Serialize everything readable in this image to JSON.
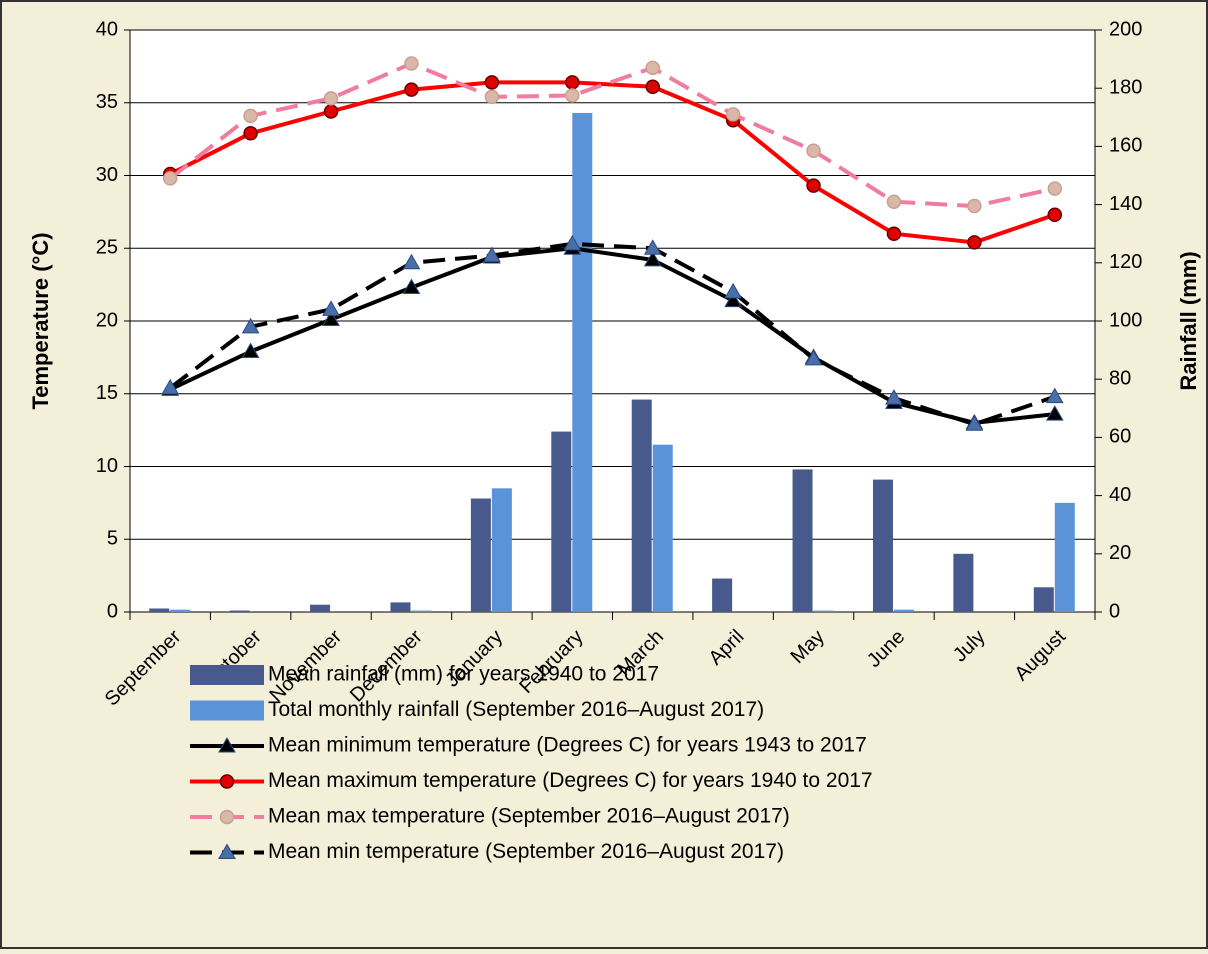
{
  "chart_data": {
    "type": "bar_line",
    "categories": [
      "September",
      "October",
      "November",
      "December",
      "January",
      "February",
      "March",
      "April",
      "May",
      "June",
      "July",
      "August"
    ],
    "ylabel": "Temperature (°C)",
    "y2label": "Rainfall (mm)",
    "ylim": [
      0,
      40
    ],
    "yticks": [
      0,
      5,
      10,
      15,
      20,
      25,
      30,
      35,
      40
    ],
    "y2lim": [
      0,
      200
    ],
    "y2ticks": [
      0,
      20,
      40,
      60,
      80,
      100,
      120,
      140,
      160,
      180,
      200
    ],
    "grid": true,
    "series": [
      {
        "name": "Mean rainfall (mm) for years 1940 to 2017",
        "kind": "bar",
        "axis": "y2",
        "color": "#485a8c",
        "values": [
          1.2,
          0.5,
          2.5,
          3.3,
          39,
          62,
          73,
          11.5,
          49,
          45.5,
          20,
          8.5
        ]
      },
      {
        "name": "Total monthly rainfall (September 2016–August 2017)",
        "kind": "bar",
        "axis": "y2",
        "color": "#5b93d9",
        "values": [
          0.8,
          0,
          0,
          0.5,
          42.5,
          171.5,
          57.5,
          0,
          0.5,
          0.8,
          0,
          37.5
        ]
      },
      {
        "name": "Mean minimum temperature (Degrees C) for years 1943 to 2017",
        "kind": "line",
        "color": "#000000",
        "marker": "triangle",
        "marker_color": "#000000",
        "dashed": false,
        "values": [
          15.3,
          17.9,
          20.1,
          22.3,
          24.4,
          25.0,
          24.2,
          21.4,
          17.5,
          14.4,
          13.0,
          13.6
        ]
      },
      {
        "name": "Mean maximum temperature (Degrees C) for years 1940 to 2017",
        "kind": "line",
        "color": "#ff0000",
        "marker": "circle",
        "marker_color": "#e00000",
        "dashed": false,
        "values": [
          30.1,
          32.9,
          34.4,
          35.9,
          36.4,
          36.4,
          36.1,
          33.8,
          29.3,
          26.0,
          25.4,
          27.3
        ]
      },
      {
        "name": "Mean max temperature (September 2016–August 2017)",
        "kind": "line",
        "color": "#f07ca0",
        "marker": "circle",
        "marker_color": "#d9b8a8",
        "dashed": true,
        "values": [
          29.8,
          34.1,
          35.3,
          37.7,
          35.4,
          35.5,
          37.4,
          34.2,
          31.7,
          28.2,
          27.9,
          29.1
        ]
      },
      {
        "name": "Mean min temperature (September 2016–August 2017)",
        "kind": "line",
        "color": "#000000",
        "marker": "triangle",
        "marker_color": "#4a6ea8",
        "dashed": true,
        "values": [
          15.4,
          19.6,
          20.8,
          24.0,
          24.5,
          25.3,
          25.0,
          22.0,
          17.4,
          14.7,
          12.9,
          14.8
        ]
      }
    ]
  }
}
